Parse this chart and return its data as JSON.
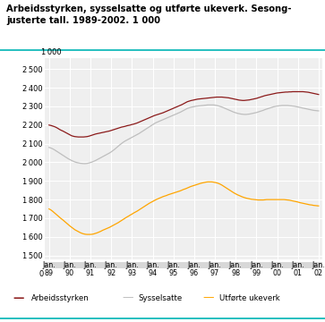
{
  "title_line1": "Arbeidsstyrken, sysselsatte og utførte ukeverk. Sesong-",
  "title_line2": "justerte tall. 1989-2002. 1 000",
  "x_labels_top": [
    "Jan.",
    "Jan.",
    "Jan.",
    "Jan.",
    "Jan.",
    "Jan.",
    "Jan.",
    "Jan.",
    "Jan.",
    "Jan.",
    "Jan.",
    "Jan.",
    "Jan.",
    "Jan."
  ],
  "x_labels_bot": [
    "89",
    "90",
    "91",
    "92",
    "93",
    "94",
    "95",
    "96",
    "97",
    "98",
    "99",
    "00",
    "01",
    "02"
  ],
  "n_points": 157,
  "arbeidsstyrken": [
    2200,
    2198,
    2195,
    2192,
    2188,
    2183,
    2177,
    2172,
    2168,
    2163,
    2158,
    2153,
    2148,
    2143,
    2140,
    2138,
    2137,
    2136,
    2136,
    2136,
    2136,
    2137,
    2138,
    2140,
    2143,
    2146,
    2149,
    2152,
    2154,
    2156,
    2158,
    2160,
    2162,
    2164,
    2166,
    2168,
    2171,
    2174,
    2177,
    2180,
    2183,
    2186,
    2189,
    2191,
    2193,
    2196,
    2198,
    2200,
    2203,
    2205,
    2208,
    2211,
    2215,
    2219,
    2223,
    2227,
    2231,
    2235,
    2239,
    2243,
    2247,
    2251,
    2254,
    2257,
    2260,
    2263,
    2266,
    2270,
    2274,
    2278,
    2282,
    2286,
    2290,
    2294,
    2298,
    2302,
    2306,
    2310,
    2315,
    2320,
    2325,
    2328,
    2331,
    2333,
    2335,
    2337,
    2339,
    2340,
    2341,
    2342,
    2343,
    2344,
    2345,
    2346,
    2347,
    2348,
    2349,
    2350,
    2350,
    2350,
    2350,
    2349,
    2348,
    2347,
    2346,
    2344,
    2342,
    2340,
    2338,
    2336,
    2334,
    2333,
    2332,
    2332,
    2333,
    2334,
    2335,
    2337,
    2339,
    2341,
    2343,
    2346,
    2349,
    2352,
    2355,
    2358,
    2360,
    2362,
    2364,
    2366,
    2368,
    2370,
    2372,
    2373,
    2374,
    2375,
    2376,
    2377,
    2377,
    2378,
    2378,
    2379,
    2379,
    2379,
    2379,
    2379,
    2379,
    2379,
    2378,
    2377,
    2376,
    2374,
    2372,
    2370,
    2368,
    2366,
    2364
  ],
  "sysselsatte": [
    2080,
    2077,
    2073,
    2068,
    2062,
    2056,
    2050,
    2044,
    2038,
    2032,
    2026,
    2020,
    2015,
    2010,
    2006,
    2002,
    1999,
    1997,
    1995,
    1994,
    1993,
    1993,
    1994,
    1996,
    1999,
    2002,
    2006,
    2010,
    2015,
    2020,
    2025,
    2030,
    2035,
    2040,
    2045,
    2050,
    2056,
    2063,
    2070,
    2078,
    2086,
    2094,
    2101,
    2108,
    2114,
    2119,
    2124,
    2129,
    2134,
    2139,
    2144,
    2149,
    2154,
    2160,
    2166,
    2172,
    2178,
    2184,
    2190,
    2196,
    2202,
    2208,
    2213,
    2217,
    2221,
    2225,
    2229,
    2233,
    2237,
    2241,
    2245,
    2249,
    2253,
    2257,
    2261,
    2265,
    2269,
    2274,
    2279,
    2284,
    2289,
    2292,
    2295,
    2297,
    2299,
    2301,
    2302,
    2303,
    2304,
    2305,
    2306,
    2307,
    2308,
    2308,
    2308,
    2308,
    2307,
    2305,
    2303,
    2300,
    2297,
    2293,
    2289,
    2285,
    2281,
    2277,
    2273,
    2269,
    2266,
    2263,
    2261,
    2259,
    2258,
    2257,
    2257,
    2258,
    2259,
    2261,
    2263,
    2265,
    2267,
    2270,
    2273,
    2276,
    2279,
    2283,
    2286,
    2289,
    2292,
    2295,
    2298,
    2300,
    2302,
    2303,
    2304,
    2305,
    2305,
    2305,
    2305,
    2304,
    2303,
    2302,
    2301,
    2299,
    2297,
    2295,
    2293,
    2291,
    2289,
    2287,
    2285,
    2283,
    2281,
    2279,
    2278,
    2277,
    2276
  ],
  "ukeverk": [
    1750,
    1745,
    1738,
    1730,
    1722,
    1714,
    1706,
    1698,
    1691,
    1683,
    1675,
    1667,
    1659,
    1652,
    1645,
    1638,
    1633,
    1628,
    1623,
    1619,
    1616,
    1614,
    1613,
    1613,
    1613,
    1614,
    1616,
    1619,
    1622,
    1626,
    1630,
    1635,
    1639,
    1643,
    1647,
    1651,
    1656,
    1661,
    1666,
    1671,
    1676,
    1682,
    1688,
    1694,
    1700,
    1706,
    1711,
    1717,
    1722,
    1728,
    1733,
    1738,
    1744,
    1750,
    1756,
    1762,
    1768,
    1774,
    1780,
    1785,
    1790,
    1795,
    1800,
    1804,
    1808,
    1812,
    1816,
    1819,
    1822,
    1826,
    1829,
    1832,
    1835,
    1838,
    1841,
    1844,
    1847,
    1851,
    1855,
    1858,
    1862,
    1866,
    1870,
    1873,
    1876,
    1879,
    1882,
    1885,
    1888,
    1890,
    1892,
    1894,
    1895,
    1895,
    1895,
    1894,
    1892,
    1890,
    1887,
    1883,
    1878,
    1872,
    1866,
    1860,
    1854,
    1848,
    1842,
    1836,
    1831,
    1826,
    1822,
    1818,
    1814,
    1811,
    1808,
    1806,
    1804,
    1802,
    1801,
    1800,
    1799,
    1798,
    1798,
    1798,
    1798,
    1799,
    1800,
    1800,
    1800,
    1800,
    1800,
    1800,
    1800,
    1800,
    1800,
    1800,
    1800,
    1799,
    1798,
    1797,
    1795,
    1793,
    1791,
    1789,
    1787,
    1784,
    1782,
    1780,
    1778,
    1776,
    1774,
    1772,
    1771,
    1769,
    1768,
    1767,
    1766
  ],
  "color_arbeid": "#8B1A1A",
  "color_syssel": "#BEBEBE",
  "color_ukeverk": "#FFA500",
  "yticks_main": [
    1500,
    1600,
    1700,
    1800,
    1900,
    2000,
    2100,
    2200,
    2300,
    2400,
    2500
  ],
  "ylim_main": [
    1480,
    2560
  ],
  "background_color": "#EFEFEF",
  "cyan_color": "#00B4B4"
}
